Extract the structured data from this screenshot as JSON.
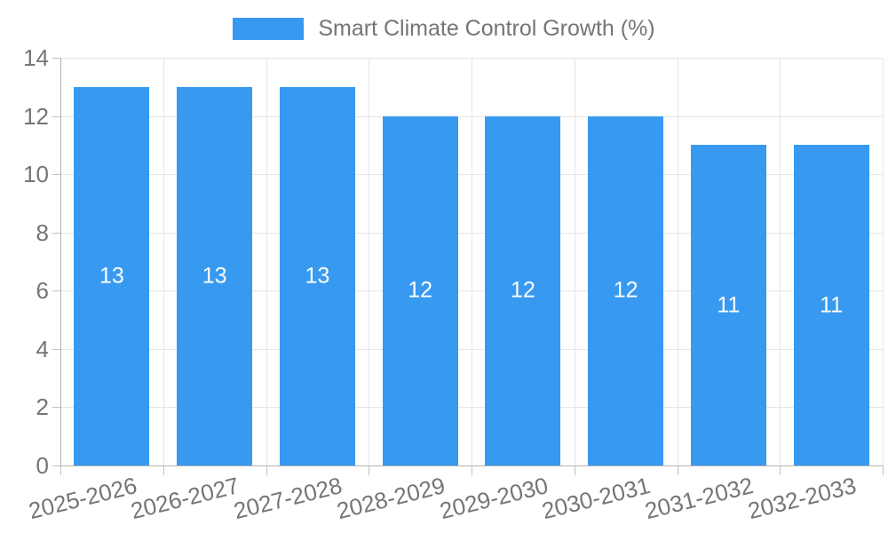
{
  "chart_data": {
    "type": "bar",
    "title": "Smart Climate Control Growth (%)",
    "categories": [
      "2025-2026",
      "2026-2027",
      "2027-2028",
      "2028-2029",
      "2029-2030",
      "2030-2031",
      "2031-2032",
      "2032-2033"
    ],
    "values": [
      13,
      13,
      13,
      12,
      12,
      12,
      11,
      11
    ],
    "value_labels": [
      "13",
      "13",
      "13",
      "12",
      "12",
      "12",
      "11",
      "11"
    ],
    "ylim": [
      0,
      14
    ],
    "yticks": [
      "0",
      "2",
      "4",
      "6",
      "8",
      "10",
      "12",
      "14"
    ],
    "xlabel": "",
    "ylabel": "",
    "grid": true,
    "legend_position": "top",
    "bar_color": "#3899f0",
    "value_label_color": "#ffffff",
    "axis_text_color": "#757575",
    "gridline_color": "#e6e6e6",
    "axis_line_color": "#b3b3b3"
  }
}
